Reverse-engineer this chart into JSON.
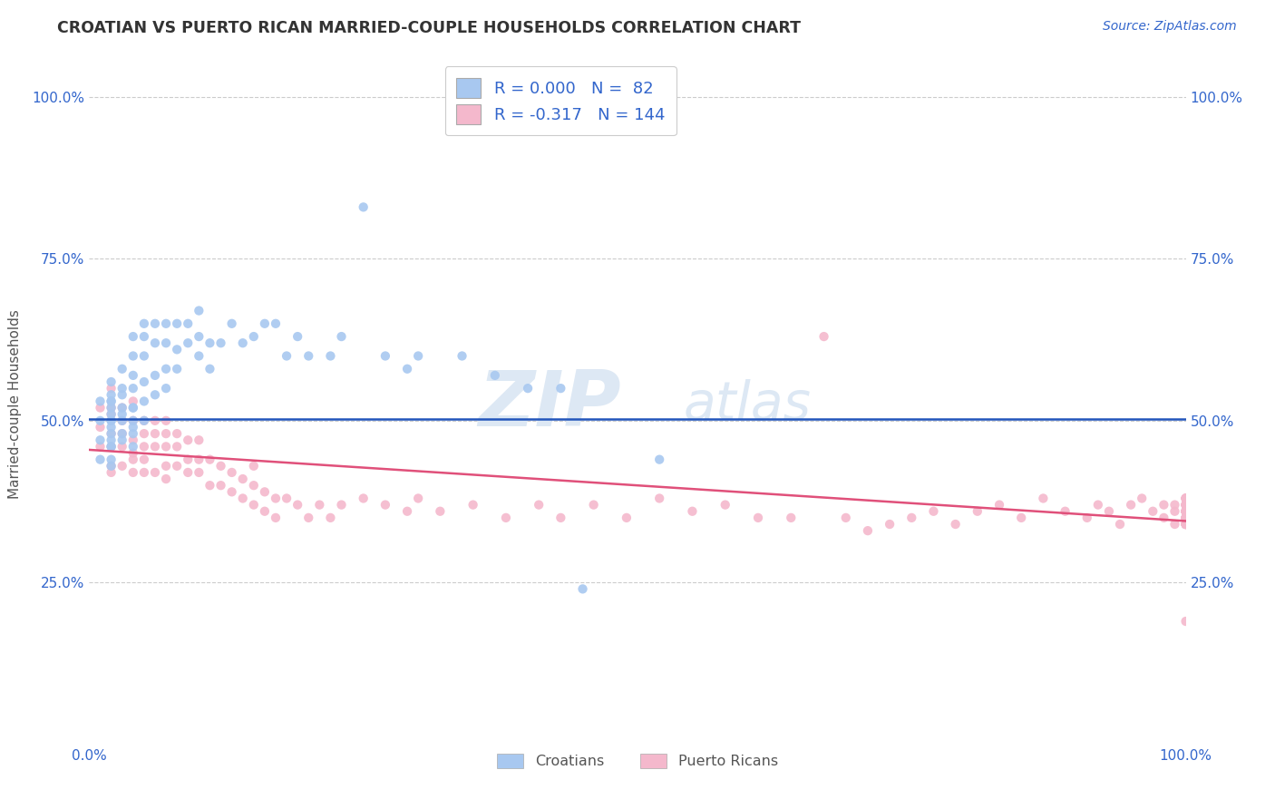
{
  "title": "CROATIAN VS PUERTO RICAN MARRIED-COUPLE HOUSEHOLDS CORRELATION CHART",
  "source": "Source: ZipAtlas.com",
  "ylabel": "Married-couple Households",
  "xlim": [
    0.0,
    1.0
  ],
  "ylim": [
    0.0,
    1.05
  ],
  "ytick_positions": [
    0.25,
    0.5,
    0.75,
    1.0
  ],
  "ytick_labels": [
    "25.0%",
    "50.0%",
    "75.0%",
    "100.0%"
  ],
  "xtick_positions": [
    0.0,
    1.0
  ],
  "xtick_labels": [
    "0.0%",
    "100.0%"
  ],
  "legend_labels": [
    "Croatians",
    "Puerto Ricans"
  ],
  "croatian_color": "#a8c8f0",
  "puerto_rican_color": "#f4b8cc",
  "croatian_line_color": "#2255bb",
  "puerto_rican_line_color": "#e0507a",
  "background_color": "#ffffff",
  "grid_color": "#cccccc",
  "title_color": "#333333",
  "axis_color": "#3366cc",
  "watermark_text": "ZIPatlas",
  "watermark_color": "#dde8f4",
  "croatian_x": [
    0.01,
    0.01,
    0.01,
    0.01,
    0.02,
    0.02,
    0.02,
    0.02,
    0.02,
    0.02,
    0.02,
    0.02,
    0.02,
    0.02,
    0.02,
    0.02,
    0.02,
    0.02,
    0.02,
    0.03,
    0.03,
    0.03,
    0.03,
    0.03,
    0.03,
    0.03,
    0.03,
    0.04,
    0.04,
    0.04,
    0.04,
    0.04,
    0.04,
    0.04,
    0.04,
    0.04,
    0.04,
    0.05,
    0.05,
    0.05,
    0.05,
    0.05,
    0.05,
    0.06,
    0.06,
    0.06,
    0.06,
    0.07,
    0.07,
    0.07,
    0.07,
    0.08,
    0.08,
    0.08,
    0.09,
    0.09,
    0.1,
    0.1,
    0.1,
    0.11,
    0.11,
    0.12,
    0.13,
    0.14,
    0.15,
    0.16,
    0.17,
    0.18,
    0.19,
    0.2,
    0.22,
    0.23,
    0.25,
    0.27,
    0.29,
    0.3,
    0.34,
    0.37,
    0.4,
    0.43,
    0.45,
    0.52
  ],
  "croatian_y": [
    0.44,
    0.47,
    0.5,
    0.53,
    0.43,
    0.46,
    0.48,
    0.5,
    0.52,
    0.54,
    0.46,
    0.49,
    0.51,
    0.53,
    0.56,
    0.44,
    0.47,
    0.5,
    0.53,
    0.47,
    0.5,
    0.52,
    0.55,
    0.58,
    0.48,
    0.51,
    0.54,
    0.48,
    0.5,
    0.52,
    0.55,
    0.57,
    0.6,
    0.63,
    0.46,
    0.49,
    0.52,
    0.5,
    0.53,
    0.56,
    0.6,
    0.63,
    0.65,
    0.54,
    0.57,
    0.62,
    0.65,
    0.55,
    0.58,
    0.62,
    0.65,
    0.58,
    0.61,
    0.65,
    0.62,
    0.65,
    0.6,
    0.63,
    0.67,
    0.58,
    0.62,
    0.62,
    0.65,
    0.62,
    0.63,
    0.65,
    0.65,
    0.6,
    0.63,
    0.6,
    0.6,
    0.63,
    0.83,
    0.6,
    0.58,
    0.6,
    0.6,
    0.57,
    0.55,
    0.55,
    0.24,
    0.44
  ],
  "puerto_rican_x": [
    0.01,
    0.01,
    0.01,
    0.02,
    0.02,
    0.02,
    0.02,
    0.02,
    0.02,
    0.02,
    0.03,
    0.03,
    0.03,
    0.03,
    0.03,
    0.04,
    0.04,
    0.04,
    0.04,
    0.04,
    0.04,
    0.05,
    0.05,
    0.05,
    0.05,
    0.05,
    0.06,
    0.06,
    0.06,
    0.06,
    0.07,
    0.07,
    0.07,
    0.07,
    0.07,
    0.08,
    0.08,
    0.08,
    0.09,
    0.09,
    0.09,
    0.1,
    0.1,
    0.1,
    0.11,
    0.11,
    0.12,
    0.12,
    0.13,
    0.13,
    0.14,
    0.14,
    0.15,
    0.15,
    0.15,
    0.16,
    0.16,
    0.17,
    0.17,
    0.18,
    0.19,
    0.2,
    0.21,
    0.22,
    0.23,
    0.25,
    0.27,
    0.29,
    0.3,
    0.32,
    0.35,
    0.38,
    0.41,
    0.43,
    0.46,
    0.49,
    0.52,
    0.55,
    0.58,
    0.61,
    0.64,
    0.67,
    0.69,
    0.71,
    0.73,
    0.75,
    0.77,
    0.79,
    0.81,
    0.83,
    0.85,
    0.87,
    0.89,
    0.91,
    0.92,
    0.93,
    0.94,
    0.95,
    0.96,
    0.97,
    0.98,
    0.98,
    0.99,
    0.99,
    0.99,
    1.0,
    1.0,
    1.0,
    1.0,
    1.0,
    1.0,
    1.0,
    1.0,
    1.0,
    1.0,
    1.0,
    1.0,
    1.0,
    1.0,
    1.0,
    1.0,
    1.0,
    1.0,
    1.0,
    1.0,
    1.0,
    1.0,
    1.0,
    1.0,
    1.0,
    1.0,
    1.0,
    1.0,
    1.0,
    1.0,
    1.0,
    1.0,
    1.0,
    1.0,
    1.0
  ],
  "puerto_rican_y": [
    0.46,
    0.49,
    0.52,
    0.43,
    0.46,
    0.48,
    0.51,
    0.52,
    0.55,
    0.42,
    0.46,
    0.48,
    0.5,
    0.52,
    0.43,
    0.45,
    0.47,
    0.5,
    0.53,
    0.42,
    0.44,
    0.46,
    0.48,
    0.5,
    0.42,
    0.44,
    0.46,
    0.48,
    0.5,
    0.42,
    0.43,
    0.46,
    0.48,
    0.5,
    0.41,
    0.43,
    0.46,
    0.48,
    0.44,
    0.47,
    0.42,
    0.44,
    0.47,
    0.42,
    0.44,
    0.4,
    0.43,
    0.4,
    0.42,
    0.39,
    0.41,
    0.38,
    0.4,
    0.43,
    0.37,
    0.39,
    0.36,
    0.38,
    0.35,
    0.38,
    0.37,
    0.35,
    0.37,
    0.35,
    0.37,
    0.38,
    0.37,
    0.36,
    0.38,
    0.36,
    0.37,
    0.35,
    0.37,
    0.35,
    0.37,
    0.35,
    0.38,
    0.36,
    0.37,
    0.35,
    0.35,
    0.63,
    0.35,
    0.33,
    0.34,
    0.35,
    0.36,
    0.34,
    0.36,
    0.37,
    0.35,
    0.38,
    0.36,
    0.35,
    0.37,
    0.36,
    0.34,
    0.37,
    0.38,
    0.36,
    0.35,
    0.37,
    0.36,
    0.34,
    0.37,
    0.35,
    0.36,
    0.38,
    0.34,
    0.36,
    0.38,
    0.35,
    0.37,
    0.36,
    0.34,
    0.36,
    0.35,
    0.37,
    0.36,
    0.34,
    0.38,
    0.36,
    0.35,
    0.37,
    0.36,
    0.34,
    0.38,
    0.36,
    0.19,
    0.35,
    0.37,
    0.36,
    0.34,
    0.36,
    0.35,
    0.38,
    0.37,
    0.36,
    0.34,
    0.37
  ]
}
